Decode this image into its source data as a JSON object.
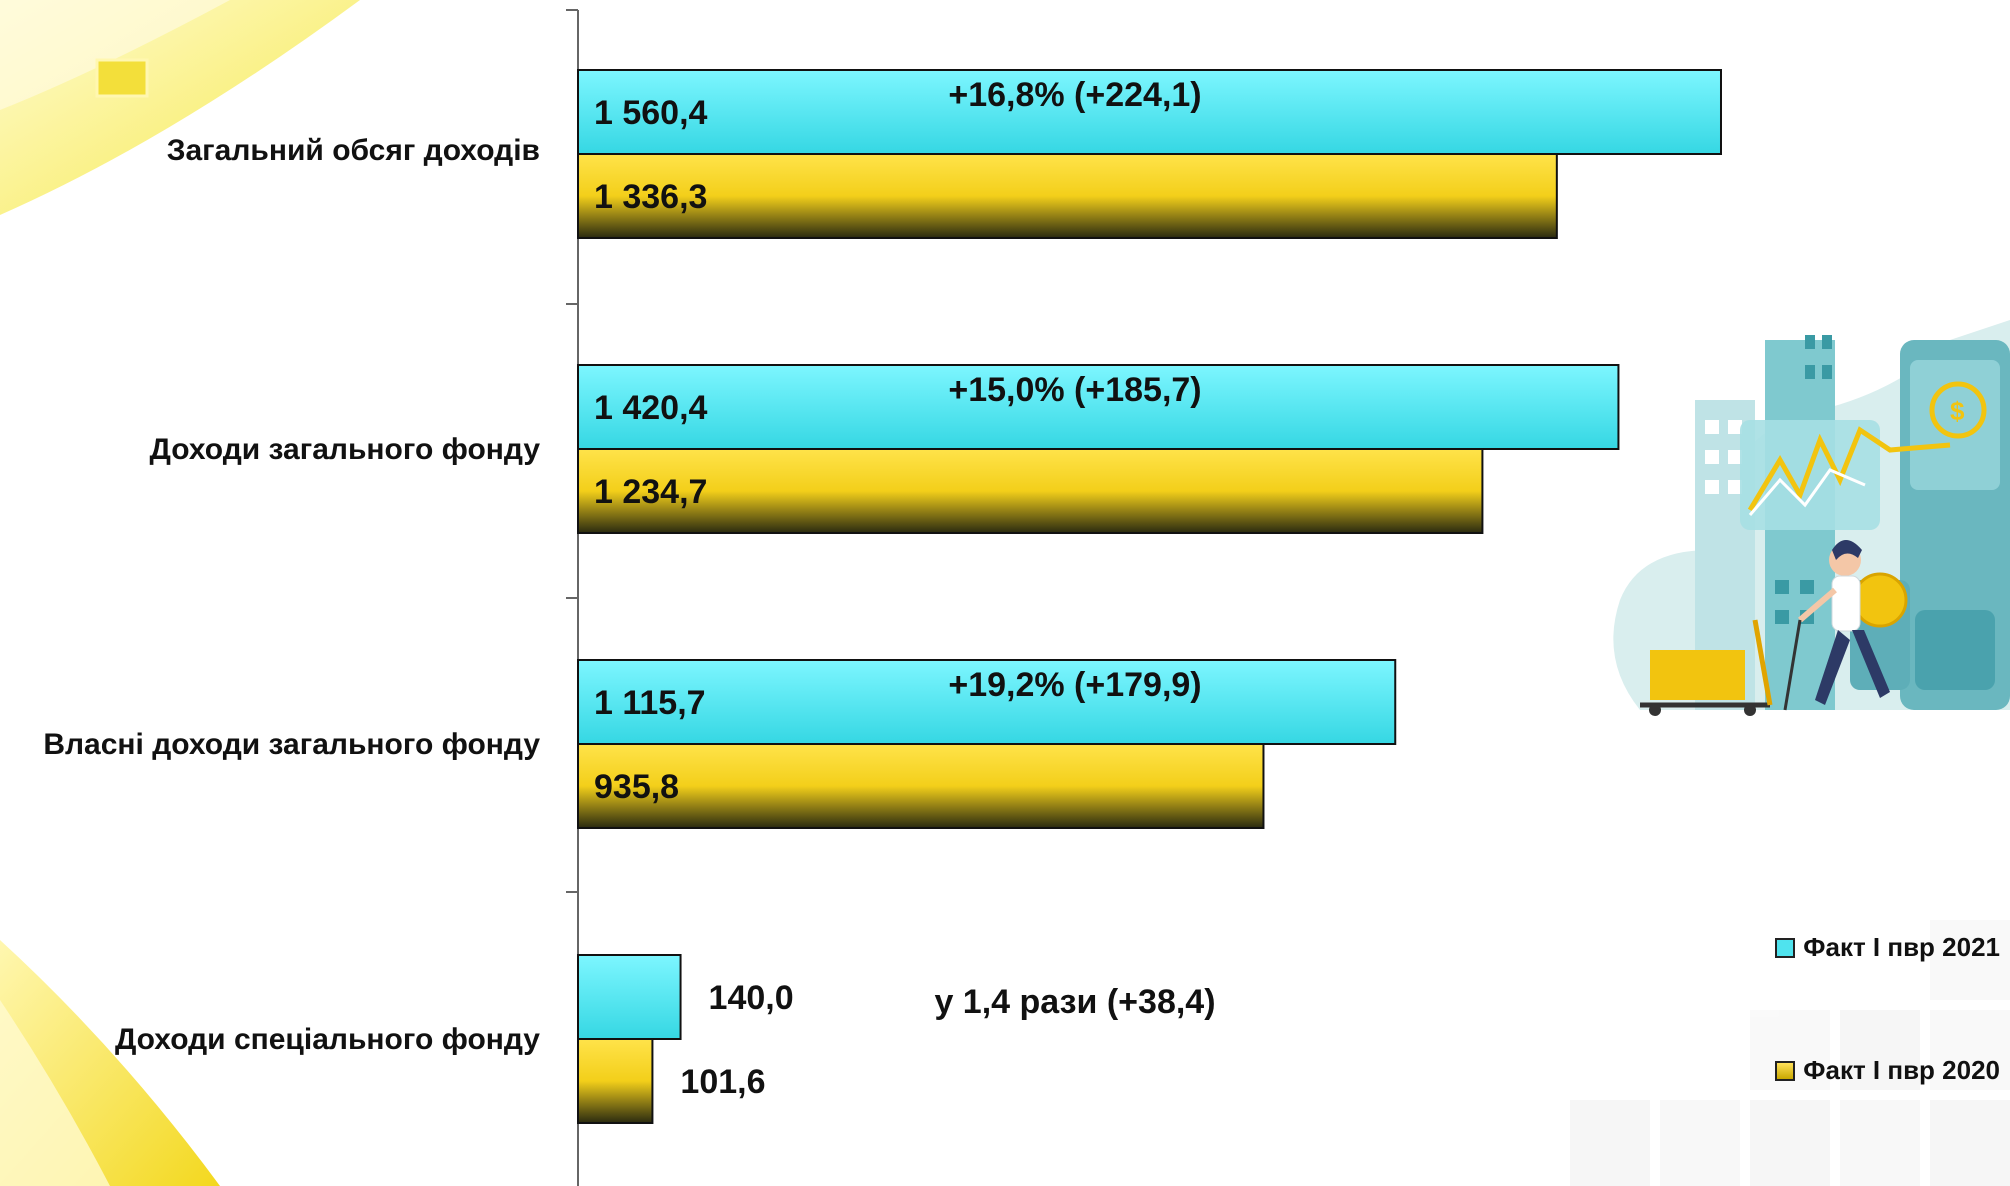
{
  "chart_data": {
    "type": "bar",
    "orientation": "horizontal",
    "categories": [
      "Загальний обсяг доходів",
      "Доходи загального фонду",
      "Власні доходи загального фонду",
      "Доходи спеціального фонду"
    ],
    "series": [
      {
        "name": "Факт І пвр 2021",
        "values": [
          1560.4,
          1420.4,
          1115.7,
          140.0
        ],
        "labels": [
          "1 560,4",
          "1 420,4",
          "1 115,7",
          "140,0"
        ],
        "color": "#4fe3ee"
      },
      {
        "name": "Факт І пвр 2020",
        "values": [
          1336.3,
          1234.7,
          935.8,
          101.6
        ],
        "labels": [
          "1 336,3",
          "1 234,7",
          "935,8",
          "101,6"
        ],
        "color": "#f5d21c"
      }
    ],
    "annotations": [
      "+16,8% (+224,1)",
      "+15,0% (+185,7)",
      "+19,2% (+179,9)",
      "у 1,4 рази (+38,4)"
    ],
    "xlim": [
      0,
      1600
    ],
    "legend_position": "right",
    "grid": false
  },
  "colors": {
    "bar_2021": "#4fe3ee",
    "bar_2020": "#f5d21c",
    "accent_yellow": "#f6e94a"
  },
  "illustration": {
    "icon": "finance-growth-illustration"
  }
}
